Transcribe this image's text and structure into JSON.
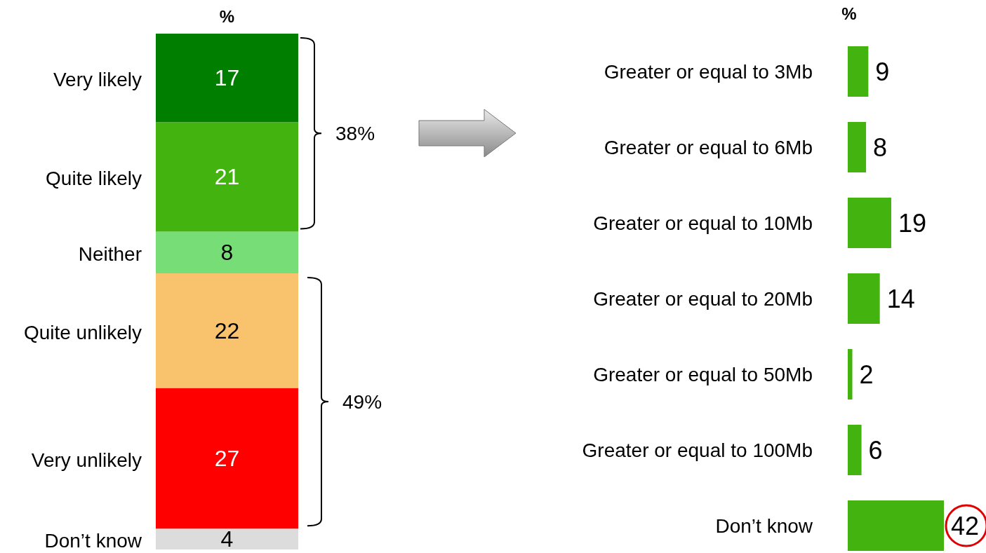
{
  "chart_data": [
    {
      "type": "bar",
      "title": "%",
      "stacked": true,
      "categories": [
        null
      ],
      "data_labels": true,
      "annotations": [
        "38%",
        "49%"
      ],
      "series": [
        {
          "name": "Don’t know",
          "color": "#dcdcdc",
          "values": [
            4
          ]
        },
        {
          "name": "Very unlikely",
          "color": "#ff0000",
          "values": [
            27
          ]
        },
        {
          "name": "Quite unlikely",
          "color": "#f8c36c",
          "values": [
            22
          ]
        },
        {
          "name": "Neither",
          "color": "#77dd77",
          "values": [
            8
          ]
        },
        {
          "name": "Quite likely",
          "color": "#43b40f",
          "values": [
            21
          ]
        },
        {
          "name": "Very likely",
          "color": "#007e00",
          "values": [
            17
          ]
        }
      ]
    },
    {
      "type": "bar",
      "title": "%",
      "orientation": "horizontal",
      "color": "#43b40f",
      "data_labels": true,
      "categories": [
        "Greater or equal to 3Mb",
        "Greater or equal to 6Mb",
        "Greater or equal to 10Mb",
        "Greater or equal to 20Mb",
        "Greater or equal to 50Mb",
        "Greater or equal to 100Mb",
        "Don’t know"
      ],
      "values": [
        9,
        8,
        19,
        14,
        2,
        6,
        42
      ]
    }
  ]
}
